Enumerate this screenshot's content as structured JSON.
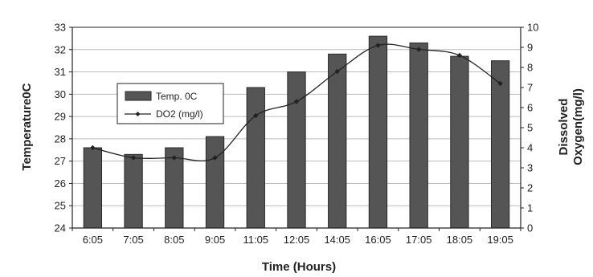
{
  "chart_data": {
    "type": "bar",
    "categories": [
      "6:05",
      "7:05",
      "8:05",
      "9:05",
      "11:05",
      "12:05",
      "14:05",
      "16:05",
      "17:05",
      "18:05",
      "19:05"
    ],
    "series": [
      {
        "name": "Temp. 0C",
        "kind": "bar",
        "axis": "left",
        "values": [
          27.6,
          27.3,
          27.6,
          28.1,
          30.3,
          31.0,
          31.8,
          32.6,
          32.3,
          31.7,
          31.5
        ]
      },
      {
        "name": "DO2 (mg/l)",
        "kind": "line",
        "axis": "right",
        "values": [
          4.0,
          3.5,
          3.5,
          3.5,
          5.6,
          6.3,
          7.8,
          9.1,
          8.9,
          8.6,
          7.2
        ]
      }
    ],
    "xlabel": "Time (Hours)",
    "ylabel": "Temperature0C",
    "y2label_line1": "Dissolved",
    "y2label_line2": "Oxygen(mg/l)",
    "ylim": [
      24,
      33
    ],
    "y2lim": [
      0,
      10
    ],
    "yticks": [
      "24",
      "25",
      "26",
      "27",
      "28",
      "29",
      "30",
      "31",
      "32",
      "33"
    ],
    "y2ticks": [
      "0",
      "1",
      "2",
      "3",
      "4",
      "5",
      "6",
      "7",
      "8",
      "9",
      "10"
    ],
    "grid": true,
    "legend_position": "left-center",
    "colors": {
      "bar": "#555555",
      "bar_edge": "#2a2a2a",
      "line": "#222222",
      "grid": "#bbbbbb"
    }
  }
}
